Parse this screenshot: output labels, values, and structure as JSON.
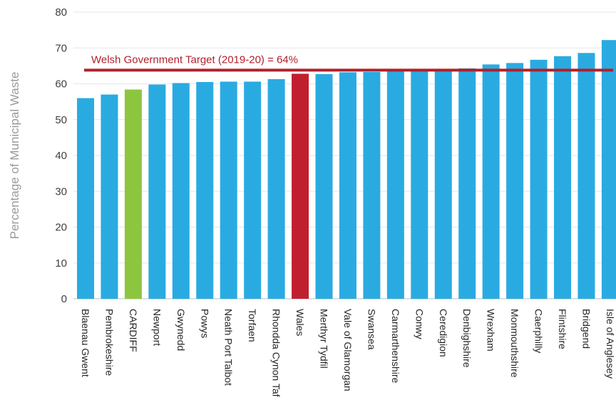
{
  "chart_data": {
    "type": "bar",
    "title": "",
    "xlabel": "",
    "ylabel": "Percentage of Municipal Waste",
    "ylim": [
      0,
      80
    ],
    "yticks": [
      0,
      10,
      20,
      30,
      40,
      50,
      60,
      70,
      80
    ],
    "grid": true,
    "categories": [
      "Blaenau Gwent",
      "Pembrokeshire",
      "CARDIFF",
      "Newport",
      "Gwynedd",
      "Powys",
      "Neath Port Talbot",
      "Torfaen",
      "Rhondda Cynon Taf",
      "Wales",
      "Merthyr Tydfil",
      "Vale of Glamorgan",
      "Swansea",
      "Carmarthenshire",
      "Conwy",
      "Ceredigion",
      "Denbighshire",
      "Wrexham",
      "Monmouthshire",
      "Caerphilly",
      "Flintshire",
      "Bridgend",
      "Isle of Anglesey"
    ],
    "values": [
      56.0,
      57.0,
      58.4,
      59.8,
      60.2,
      60.5,
      60.6,
      60.6,
      61.3,
      62.8,
      62.7,
      63.2,
      63.3,
      64.0,
      64.1,
      64.1,
      64.3,
      65.4,
      65.8,
      66.7,
      67.7,
      68.6,
      72.2
    ],
    "highlight_colors": {
      "CARDIFF": "#8cc63f",
      "Wales": "#c0202e"
    },
    "bar_color": "#29abe2",
    "reference_line": {
      "label": "Welsh Government Target (2019-20) = 64%",
      "value": 64,
      "color": "#b0202b"
    }
  }
}
